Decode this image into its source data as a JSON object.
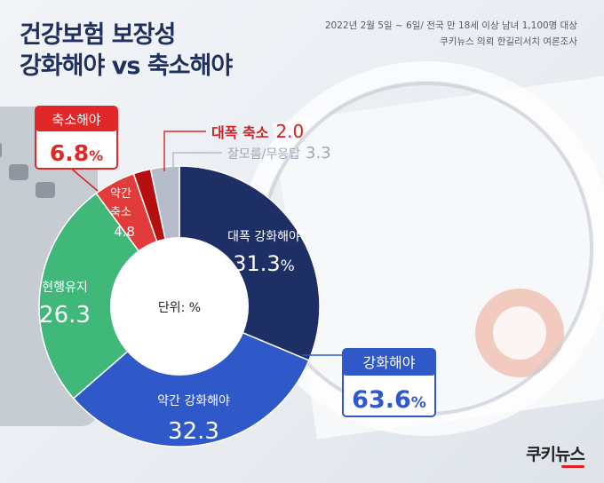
{
  "title": {
    "line1": "건강보험 보장성",
    "line2": "강화해야 vs 축소해야"
  },
  "source": {
    "line1": "2022년 2월 5일 ~ 6일/ 전국 만 18세 이상 남녀 1,100명 대상",
    "line2": "쿠키뉴스 의뢰 한길리서치 여론조사"
  },
  "logo": "쿠키뉴스",
  "colors": {
    "strong_expand": "#1e2f66",
    "slight_expand": "#2f58c8",
    "keep": "#3fb879",
    "slight_reduce": "#e23b3b",
    "strong_reduce": "#b50f0f",
    "dont_know": "#b7bccc"
  },
  "chart_data": {
    "type": "pie",
    "unit_label": "단위: %",
    "categories": [
      "대폭 강화해야",
      "약간 강화해야",
      "현행유지",
      "약간 축소",
      "대폭 축소",
      "잘모름/무응답"
    ],
    "values": [
      31.3,
      32.3,
      26.3,
      4.8,
      2.0,
      3.3
    ],
    "labels": {
      "strong_expand": {
        "name": "대폭 강화해야",
        "value": "31.3",
        "unit": "%"
      },
      "slight_expand": {
        "name": "약간 강화해야",
        "value": "32.3"
      },
      "keep": {
        "name": "현행유지",
        "value": "26.3"
      },
      "slight_reduce": {
        "name1": "약간",
        "name2": "축소",
        "value": "4.8"
      },
      "strong_reduce": {
        "name": "대폭 축소",
        "value": "2.0"
      },
      "dont_know": {
        "name": "잘모름/무응답",
        "value": "3.3"
      }
    },
    "callouts": {
      "expand": {
        "label": "강화해야",
        "value": "63.6",
        "unit": "%"
      },
      "reduce": {
        "label": "축소해야",
        "value": "6.8",
        "unit": "%"
      }
    }
  }
}
